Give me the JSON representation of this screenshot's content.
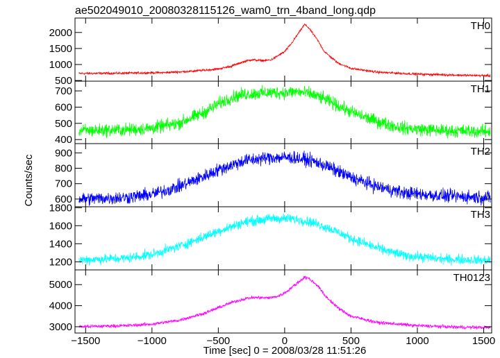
{
  "title": "ae502049010_20080328115126_wam0_trn_4band_long.qdp",
  "ylabel": "Counts/sec",
  "xlabel": "Time [sec] 0 = 2008/03/28 11:51:26",
  "chart_data": {
    "type": "line",
    "title": "ae502049010_20080328115126_wam0_trn_4band_long.qdp",
    "xlabel": "Time [sec] 0 = 2008/03/28 11:51:26",
    "ylabel": "Counts/sec",
    "xlim": [
      -1580,
      1560
    ],
    "x_ticks": [
      -1500,
      -1000,
      -500,
      0,
      500,
      1000,
      1500
    ],
    "x_tick_labels": [
      "−1500",
      "−1000",
      "−500",
      "0",
      "500",
      "1000",
      "1500"
    ],
    "grid": false,
    "panels": [
      {
        "name": "TH0",
        "color": "#ff0000",
        "ylim": [
          480,
          2450
        ],
        "y_ticks": [
          500,
          1000,
          1500,
          2000
        ],
        "noise": 25,
        "points": [
          [
            -1550,
            720
          ],
          [
            -1200,
            730
          ],
          [
            -900,
            750
          ],
          [
            -700,
            790
          ],
          [
            -500,
            860
          ],
          [
            -400,
            950
          ],
          [
            -300,
            1100
          ],
          [
            -250,
            1150
          ],
          [
            -200,
            1130
          ],
          [
            -150,
            1120
          ],
          [
            -100,
            1150
          ],
          [
            0,
            1400
          ],
          [
            50,
            1650
          ],
          [
            100,
            1950
          ],
          [
            150,
            2250
          ],
          [
            180,
            2150
          ],
          [
            250,
            1750
          ],
          [
            300,
            1400
          ],
          [
            400,
            1050
          ],
          [
            500,
            880
          ],
          [
            700,
            760
          ],
          [
            1000,
            700
          ],
          [
            1300,
            670
          ],
          [
            1550,
            650
          ]
        ]
      },
      {
        "name": "TH1",
        "color": "#00ff00",
        "ylim": [
          375,
          760
        ],
        "y_ticks": [
          400,
          500,
          600,
          700
        ],
        "noise": 28,
        "points": [
          [
            -1550,
            455
          ],
          [
            -1200,
            460
          ],
          [
            -1000,
            470
          ],
          [
            -800,
            500
          ],
          [
            -600,
            570
          ],
          [
            -500,
            620
          ],
          [
            -400,
            660
          ],
          [
            -300,
            680
          ],
          [
            -100,
            690
          ],
          [
            0,
            690
          ],
          [
            100,
            695
          ],
          [
            200,
            680
          ],
          [
            300,
            650
          ],
          [
            400,
            610
          ],
          [
            500,
            570
          ],
          [
            700,
            510
          ],
          [
            900,
            470
          ],
          [
            1200,
            455
          ],
          [
            1550,
            450
          ]
        ]
      },
      {
        "name": "TH2",
        "color": "#0000ff",
        "ylim": [
          550,
          960
        ],
        "y_ticks": [
          600,
          700,
          800,
          900
        ],
        "noise": 30,
        "points": [
          [
            -1550,
            600
          ],
          [
            -1200,
            610
          ],
          [
            -1000,
            630
          ],
          [
            -800,
            680
          ],
          [
            -600,
            750
          ],
          [
            -500,
            790
          ],
          [
            -400,
            820
          ],
          [
            -300,
            850
          ],
          [
            -100,
            870
          ],
          [
            0,
            870
          ],
          [
            100,
            865
          ],
          [
            200,
            850
          ],
          [
            300,
            820
          ],
          [
            400,
            780
          ],
          [
            500,
            740
          ],
          [
            700,
            680
          ],
          [
            900,
            640
          ],
          [
            1200,
            620
          ],
          [
            1550,
            610
          ]
        ]
      },
      {
        "name": "TH3",
        "color": "#00ffff",
        "ylim": [
          1110,
          1810
        ],
        "y_ticks": [
          1200,
          1400,
          1600,
          1800
        ],
        "noise": 38,
        "points": [
          [
            -1550,
            1220
          ],
          [
            -1200,
            1240
          ],
          [
            -1000,
            1280
          ],
          [
            -800,
            1370
          ],
          [
            -600,
            1480
          ],
          [
            -500,
            1540
          ],
          [
            -400,
            1590
          ],
          [
            -300,
            1640
          ],
          [
            -100,
            1680
          ],
          [
            0,
            1680
          ],
          [
            100,
            1670
          ],
          [
            200,
            1640
          ],
          [
            300,
            1590
          ],
          [
            400,
            1530
          ],
          [
            500,
            1460
          ],
          [
            700,
            1350
          ],
          [
            900,
            1270
          ],
          [
            1200,
            1230
          ],
          [
            1550,
            1215
          ]
        ]
      },
      {
        "name": "TH0123",
        "color": "#ff00ff",
        "ylim": [
          2700,
          5700
        ],
        "y_ticks": [
          3000,
          4000,
          5000
        ],
        "noise": 55,
        "points": [
          [
            -1550,
            3000
          ],
          [
            -1200,
            3050
          ],
          [
            -1000,
            3120
          ],
          [
            -800,
            3300
          ],
          [
            -600,
            3650
          ],
          [
            -500,
            3900
          ],
          [
            -400,
            4150
          ],
          [
            -300,
            4330
          ],
          [
            -250,
            4380
          ],
          [
            -200,
            4390
          ],
          [
            -150,
            4370
          ],
          [
            -100,
            4380
          ],
          [
            -50,
            4450
          ],
          [
            0,
            4600
          ],
          [
            50,
            4850
          ],
          [
            100,
            5100
          ],
          [
            150,
            5350
          ],
          [
            180,
            5300
          ],
          [
            250,
            4950
          ],
          [
            300,
            4500
          ],
          [
            400,
            3900
          ],
          [
            500,
            3500
          ],
          [
            700,
            3200
          ],
          [
            1000,
            3050
          ],
          [
            1300,
            2980
          ],
          [
            1550,
            2960
          ]
        ]
      }
    ]
  }
}
